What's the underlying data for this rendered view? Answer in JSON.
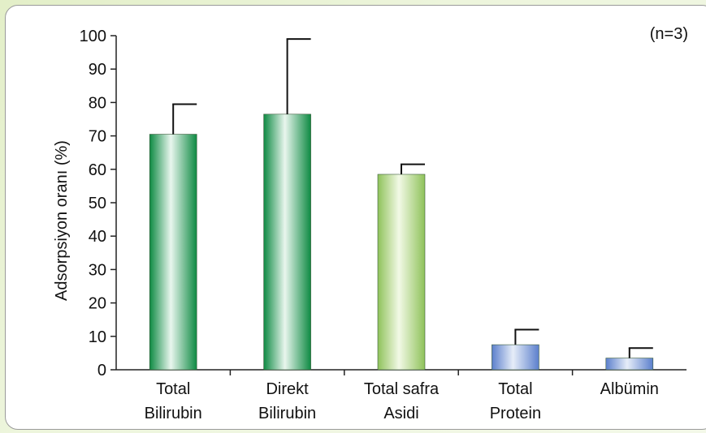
{
  "chart_data": {
    "type": "bar",
    "categories": [
      [
        "Total",
        "Bilirubin"
      ],
      [
        "Direkt",
        "Bilirubin"
      ],
      [
        "Total safra",
        "Asidi"
      ],
      [
        "Total",
        "Protein"
      ],
      [
        "Albümin"
      ]
    ],
    "values": [
      70.5,
      76.5,
      58.5,
      7.5,
      3.5
    ],
    "error": [
      9,
      22.5,
      3,
      4.5,
      3
    ],
    "bar_fill": [
      "green",
      "green",
      "light-green",
      "blue",
      "blue"
    ],
    "colors": {
      "green_dark": "#0e8a43",
      "green_light": "#e9f6ee",
      "lightgreen_dark": "#8fc25a",
      "lightgreen_light": "#f2f9e6",
      "blue_dark": "#5b7fcc",
      "blue_light": "#e6edf8"
    },
    "ylabel": "Adsorpsiyon oranı (%)",
    "xlabel": "",
    "title": "",
    "annotation": "(n=3)",
    "ylim": [
      0,
      100
    ],
    "yticks": [
      0,
      10,
      20,
      30,
      40,
      50,
      60,
      70,
      80,
      90,
      100
    ],
    "grid": false
  }
}
